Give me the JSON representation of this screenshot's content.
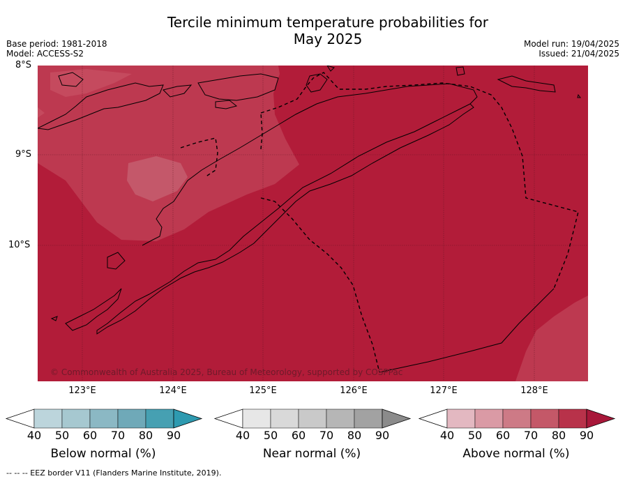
{
  "title_line1": "Tercile minimum temperature probabilities for",
  "title_line2": "May 2025",
  "meta_left": [
    "Base period: 1981-2018",
    "Model: ACCESS-S2"
  ],
  "meta_right": [
    "Model run: 19/04/2025",
    "Issued: 21/04/2025"
  ],
  "lat_labels": [
    "8°S",
    "9°S",
    "10°S"
  ],
  "lon_labels": [
    "123°E",
    "124°E",
    "125°E",
    "126°E",
    "127°E",
    "128°E"
  ],
  "copyright": "© Commonwealth of Australia 2025, Bureau of Meteorology, supported by COSPPac",
  "colorbars": [
    {
      "label": "Below normal (%)",
      "ticks": [
        "40",
        "50",
        "60",
        "70",
        "80",
        "90"
      ],
      "colors": [
        "#ffffff",
        "#bcd5dc",
        "#a6c8d0",
        "#8bb8c4",
        "#6fa9b8",
        "#46a0b2",
        "#2e9ab0"
      ]
    },
    {
      "label": "Near normal (%)",
      "ticks": [
        "40",
        "50",
        "60",
        "70",
        "80",
        "90"
      ],
      "colors": [
        "#ffffff",
        "#e7e7e7",
        "#d9d9d9",
        "#c9c9c9",
        "#b6b6b6",
        "#a2a2a2",
        "#8b8b8b"
      ]
    },
    {
      "label": "Above normal (%)",
      "ticks": [
        "40",
        "50",
        "60",
        "70",
        "80",
        "90"
      ],
      "colors": [
        "#ffffff",
        "#e3b8c1",
        "#da9aa5",
        "#cd7a86",
        "#c45868",
        "#b8324a",
        "#a8183a"
      ]
    }
  ],
  "eez_note": "--  --  -- EEZ border V11 (Flanders Marine Institute, 2019).",
  "map_colors": {
    "above_90": "#b21c39",
    "above_80": "#bd3950",
    "above_70": "#c45868",
    "coast": "#000000"
  }
}
